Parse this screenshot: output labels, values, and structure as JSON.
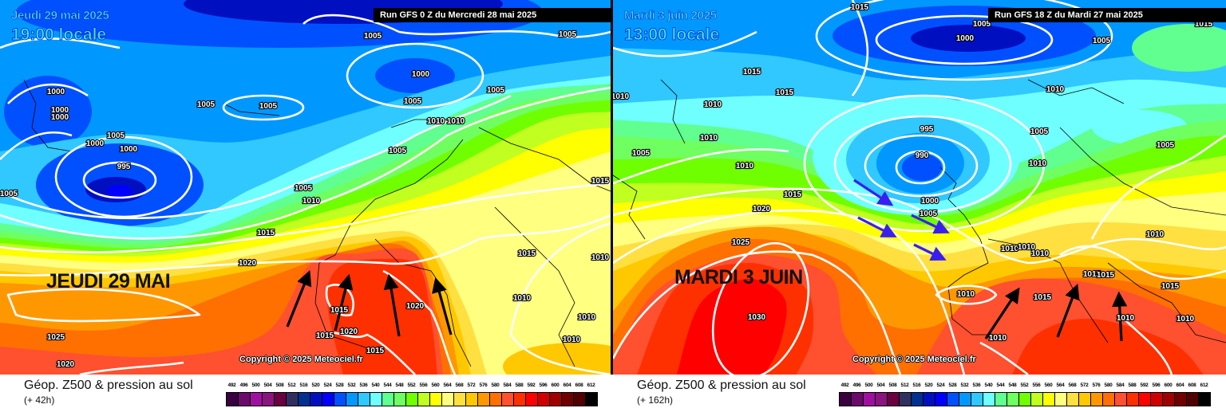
{
  "panels": [
    {
      "date": "Jeudi 29 mai 2025",
      "time": "19:00 locale",
      "run": "Run GFS 0 Z du Mercredi 28 mai 2025",
      "big_label": "JEUDI 29 MAI",
      "copyright": "Copyright © 2025 Meteociel.fr",
      "product": "Géop. Z500 & pression au sol",
      "lead": "(+ 42h)",
      "pressure_labels": [
        "1005",
        "1005",
        "1000",
        "1005",
        "1005",
        "1005",
        "1000",
        "1000",
        "1000",
        "1005",
        "1000",
        "1000",
        "995",
        "1005",
        "1010",
        "1010",
        "1005",
        "1005",
        "1010",
        "1005",
        "1015",
        "1020",
        "1015",
        "1010",
        "1015",
        "1020",
        "1015",
        "1015",
        "1020",
        "1010",
        "1010",
        "1010",
        "1025",
        "1020",
        "1015"
      ]
    },
    {
      "date": "Mardi 3 juin 2025",
      "time": "13:00 locale",
      "run": "Run GFS 18 Z du Mardi 27 mai 2025",
      "big_label": "MARDI 3 JUIN",
      "copyright": "Copyright © 2025 Meteociel.fr",
      "product": "Géop. Z500 & pression au sol",
      "lead": "(+ 162h)",
      "pressure_labels": [
        "1015",
        "1000",
        "1005",
        "1005",
        "1015",
        "1015",
        "1010",
        "1015",
        "1010",
        "1010",
        "1005",
        "1010",
        "995",
        "990",
        "1010",
        "1005",
        "1005",
        "1010",
        "1015",
        "1020",
        "1025",
        "1030",
        "1000",
        "1005",
        "1010",
        "1010",
        "1010",
        "1010",
        "1015",
        "1010",
        "1015",
        "1015",
        "1015",
        "1010",
        "1010",
        "1010"
      ]
    }
  ],
  "legend": {
    "levels": [
      492,
      496,
      500,
      504,
      508,
      512,
      516,
      520,
      524,
      528,
      532,
      536,
      540,
      544,
      548,
      552,
      556,
      560,
      564,
      568,
      572,
      576,
      580,
      584,
      588,
      592,
      596,
      600,
      604,
      608,
      612
    ],
    "colors": [
      "#3a0040",
      "#6a0a6a",
      "#a010a0",
      "#8a1480",
      "#6a0040",
      "#303060",
      "#003090",
      "#0010c0",
      "#0000ff",
      "#0050ff",
      "#0098ff",
      "#30c8ff",
      "#70ffff",
      "#60ff90",
      "#70ff60",
      "#70ff00",
      "#c0ff20",
      "#ffff00",
      "#ffff80",
      "#ffe040",
      "#ffc800",
      "#ff9800",
      "#ff7000",
      "#ff5030",
      "#ff3000",
      "#ff0000",
      "#d00000",
      "#a00000",
      "#700000",
      "#500000",
      "#000000"
    ]
  },
  "annotations": {
    "flow_arrow_color": "#000000",
    "westerly_arrow_color": "#3a1ef0",
    "isobar_color": "#ffffff"
  }
}
